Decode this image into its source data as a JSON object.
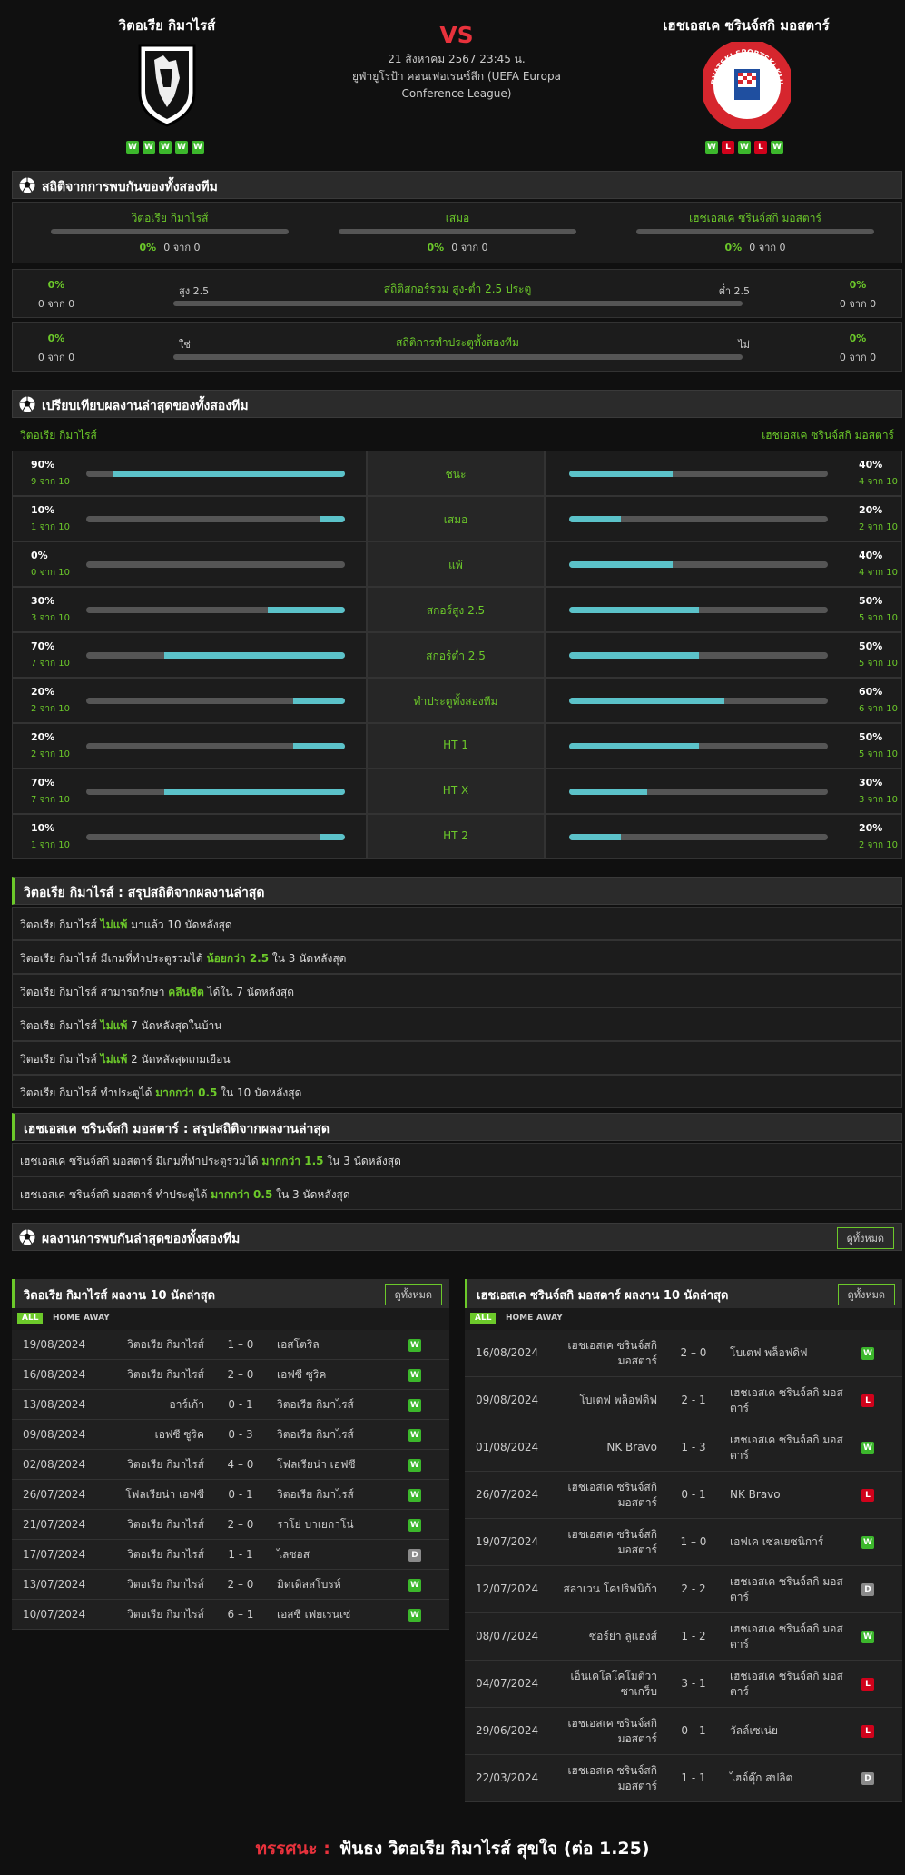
{
  "header": {
    "home": {
      "name": "วิตอเรีย กิมาไรส์",
      "form": [
        "W",
        "W",
        "W",
        "W",
        "W"
      ]
    },
    "vs": "VS",
    "date": "21 สิงหาคม 2567 23:45 น.",
    "league": "ยูฟ่ายูโรป้า คอนเฟอเรนซ์ลีก (UEFA Europa Conference League)",
    "away": {
      "name": "เฮชเอสเค ซรินจ์สกิ มอสตาร์",
      "form": [
        "W",
        "L",
        "W",
        "L",
        "W"
      ],
      "logo_top": "HRVATSKI SPORTSKI KLUB",
      "logo_bottom": "MOSTAR"
    }
  },
  "h2h": {
    "title": "สถิติจากการพบกันของทั้งสองทีม",
    "columns": [
      {
        "label": "วิตอเรีย กิมาไรส์",
        "pct": "0%",
        "count": "0 จาก 0"
      },
      {
        "label": "เสมอ",
        "pct": "0%",
        "count": "0 จาก 0"
      },
      {
        "label": "เฮชเอสเค ซรินจ์สกิ มอสตาร์",
        "pct": "0%",
        "count": "0 จาก 0"
      }
    ],
    "rows": [
      {
        "title": "สถิติสกอร์รวม สูง-ต่ำ 2.5 ประตู",
        "left_label": "สูง 2.5",
        "right_label": "ต่ำ 2.5",
        "left_pct": "0%",
        "left_count": "0 จาก 0",
        "right_pct": "0%",
        "right_count": "0 จาก 0"
      },
      {
        "title": "สถิติการทำประตูทั้งสองทีม",
        "left_label": "ใช่",
        "right_label": "ไม่",
        "left_pct": "0%",
        "left_count": "0 จาก 0",
        "right_pct": "0%",
        "right_count": "0 จาก 0"
      }
    ]
  },
  "compare": {
    "title": "เปรียบเทียบผลงานล่าสุดของทั้งสองทีม",
    "home": "วิตอเรีย กิมาไรส์",
    "away": "เฮชเอสเค ซรินจ์สกิ มอสตาร์",
    "rows": [
      {
        "label": "ชนะ",
        "home": {
          "value": 90,
          "label": "90%",
          "count": "9 จาก 10"
        },
        "away": {
          "value": 40,
          "label": "40%",
          "count": "4 จาก 10"
        }
      },
      {
        "label": "เสมอ",
        "home": {
          "value": 10,
          "label": "10%",
          "count": "1 จาก 10"
        },
        "away": {
          "value": 20,
          "label": "20%",
          "count": "2 จาก 10"
        }
      },
      {
        "label": "แพ้",
        "home": {
          "value": 0,
          "label": "0%",
          "count": "0 จาก 10"
        },
        "away": {
          "value": 40,
          "label": "40%",
          "count": "4 จาก 10"
        }
      },
      {
        "label": "สกอร์สูง 2.5",
        "home": {
          "value": 30,
          "label": "30%",
          "count": "3 จาก 10"
        },
        "away": {
          "value": 50,
          "label": "50%",
          "count": "5 จาก 10"
        }
      },
      {
        "label": "สกอร์ต่ำ 2.5",
        "home": {
          "value": 70,
          "label": "70%",
          "count": "7 จาก 10"
        },
        "away": {
          "value": 50,
          "label": "50%",
          "count": "5 จาก 10"
        }
      },
      {
        "label": "ทำประตูทั้งสองทีม",
        "home": {
          "value": 20,
          "label": "20%",
          "count": "2 จาก 10"
        },
        "away": {
          "value": 60,
          "label": "60%",
          "count": "6 จาก 10"
        }
      },
      {
        "label": "HT 1",
        "home": {
          "value": 20,
          "label": "20%",
          "count": "2 จาก 10"
        },
        "away": {
          "value": 50,
          "label": "50%",
          "count": "5 จาก 10"
        }
      },
      {
        "label": "HT X",
        "home": {
          "value": 70,
          "label": "70%",
          "count": "7 จาก 10"
        },
        "away": {
          "value": 30,
          "label": "30%",
          "count": "3 จาก 10"
        }
      },
      {
        "label": "HT 2",
        "home": {
          "value": 10,
          "label": "10%",
          "count": "1 จาก 10"
        },
        "away": {
          "value": 20,
          "label": "20%",
          "count": "2 จาก 10"
        }
      }
    ]
  },
  "summaries": [
    {
      "title": "วิตอเรีย กิมาไรส์ : สรุปสถิติจากผลงานล่าสุด",
      "rows": [
        [
          "วิตอเรีย กิมาไรส์ ",
          "ไม่แพ้",
          " มาแล้ว 10 นัดหลังสุด"
        ],
        [
          "วิตอเรีย กิมาไรส์ มีเกมที่ทำประตูรวมได้ ",
          "น้อยกว่า 2.5",
          " ใน 3 นัดหลังสุด"
        ],
        [
          "วิตอเรีย กิมาไรส์ สามารถรักษา ",
          "คลีนชีต",
          " ได้ใน 7 นัดหลังสุด"
        ],
        [
          "วิตอเรีย กิมาไรส์ ",
          "ไม่แพ้",
          " 7 นัดหลังสุดในบ้าน"
        ],
        [
          "วิตอเรีย กิมาไรส์ ",
          "ไม่แพ้",
          " 2 นัดหลังสุดเกมเยือน"
        ],
        [
          "วิตอเรีย กิมาไรส์ ทำประตูได้ ",
          "มากกว่า 0.5",
          " ใน 10 นัดหลังสุด"
        ]
      ]
    },
    {
      "title": "เฮชเอสเค ซรินจ์สกิ มอสตาร์ : สรุปสถิติจากผลงานล่าสุด",
      "rows": [
        [
          "เฮชเอสเค ซรินจ์สกิ มอสตาร์ มีเกมที่ทำประตูรวมได้ ",
          "มากกว่า 1.5",
          " ใน 3 นัดหลังสุด"
        ],
        [
          "เฮชเอสเค ซรินจ์สกิ มอสตาร์ ทำประตูได้ ",
          "มากกว่า 0.5",
          " ใน 3 นัดหลังสุด"
        ]
      ]
    }
  ],
  "recent": {
    "title": "ผลงานการพบกันล่าสุดของทั้งสองทีม",
    "button": "ดูทั้งหมด",
    "panels": [
      {
        "title": "วิตอเรีย กิมาไรส์ ผลงาน 10 นัดล่าสุด",
        "button": "ดูทั้งหมด",
        "tabs": [
          "ALL",
          "HOME",
          "AWAY"
        ],
        "matches": [
          [
            "19/08/2024",
            "วิตอเรีย กิมาไรส์",
            "1 – 0",
            "เอสโตริล",
            "W"
          ],
          [
            "16/08/2024",
            "วิตอเรีย กิมาไรส์",
            "2 – 0",
            "เอฟซี ซูริค",
            "W"
          ],
          [
            "13/08/2024",
            "อาร์เก้า",
            "0 - 1",
            "วิตอเรีย กิมาไรส์",
            "W"
          ],
          [
            "09/08/2024",
            "เอฟซี ซูริค",
            "0 - 3",
            "วิตอเรีย กิมาไรส์",
            "W"
          ],
          [
            "02/08/2024",
            "วิตอเรีย กิมาไรส์",
            "4 – 0",
            "โฟลเรียน่า เอฟซี",
            "W"
          ],
          [
            "26/07/2024",
            "โฟลเรียน่า เอฟซี",
            "0 - 1",
            "วิตอเรีย กิมาไรส์",
            "W"
          ],
          [
            "21/07/2024",
            "วิตอเรีย กิมาไรส์",
            "2 – 0",
            "ราโย่ บาเยกาโน่",
            "W"
          ],
          [
            "17/07/2024",
            "วิตอเรีย กิมาไรส์",
            "1 - 1",
            "ไลซอส",
            "D"
          ],
          [
            "13/07/2024",
            "วิตอเรีย กิมาไรส์",
            "2 – 0",
            "มิดเดิลสโบรห์",
            "W"
          ],
          [
            "10/07/2024",
            "วิตอเรีย กิมาไรส์",
            "6 – 1",
            "เอสซี เฟยเรนเซ่",
            "W"
          ]
        ]
      },
      {
        "title": "เฮชเอสเค ซรินจ์สกิ มอสตาร์ ผลงาน 10 นัดล่าสุด",
        "button": "ดูทั้งหมด",
        "tabs": [
          "ALL",
          "HOME",
          "AWAY"
        ],
        "matches": [
          [
            "16/08/2024",
            "เฮชเอสเค ซรินจ์สกิ มอสตาร์",
            "2 – 0",
            "โบเตฟ พล็อฟดิฟ",
            "W"
          ],
          [
            "09/08/2024",
            "โบเตฟ พล็อฟดิฟ",
            "2 - 1",
            "เฮชเอสเค ซรินจ์สกิ มอสตาร์",
            "L"
          ],
          [
            "01/08/2024",
            "NK Bravo",
            "1 - 3",
            "เฮชเอสเค ซรินจ์สกิ มอสตาร์",
            "W"
          ],
          [
            "26/07/2024",
            "เฮชเอสเค ซรินจ์สกิ มอสตาร์",
            "0 - 1",
            "NK Bravo",
            "L"
          ],
          [
            "19/07/2024",
            "เฮชเอสเค ซรินจ์สกิ มอสตาร์",
            "1 – 0",
            "เอฟเค เซลเยซนิการ์",
            "W"
          ],
          [
            "12/07/2024",
            "สลาเวน โคปริฟนิก้า",
            "2 - 2",
            "เฮชเอสเค ซรินจ์สกิ มอสตาร์",
            "D"
          ],
          [
            "08/07/2024",
            "ซอร์ย่า ลูแฮงส์",
            "1 - 2",
            "เฮชเอสเค ซรินจ์สกิ มอสตาร์",
            "W"
          ],
          [
            "04/07/2024",
            "เอ็นเคโลโคโมติวา ซาเกร็บ",
            "3 - 1",
            "เฮชเอสเค ซรินจ์สกิ มอสตาร์",
            "L"
          ],
          [
            "29/06/2024",
            "เฮชเอสเค ซรินจ์สกิ มอสตาร์",
            "0 - 1",
            "วัลล์เซเน่ย",
            "L"
          ],
          [
            "22/03/2024",
            "เฮชเอสเค ซรินจ์สกิ มอสตาร์",
            "1 - 1",
            "ไฮจ์ดุ๊ก สปลิต",
            "D"
          ]
        ]
      }
    ]
  },
  "footer": {
    "label": "ทรรศนะ :",
    "text": "ฟันธง วิตอเรีย กิมาไรส์ สุขใจ (ต่อ 1.25)"
  }
}
